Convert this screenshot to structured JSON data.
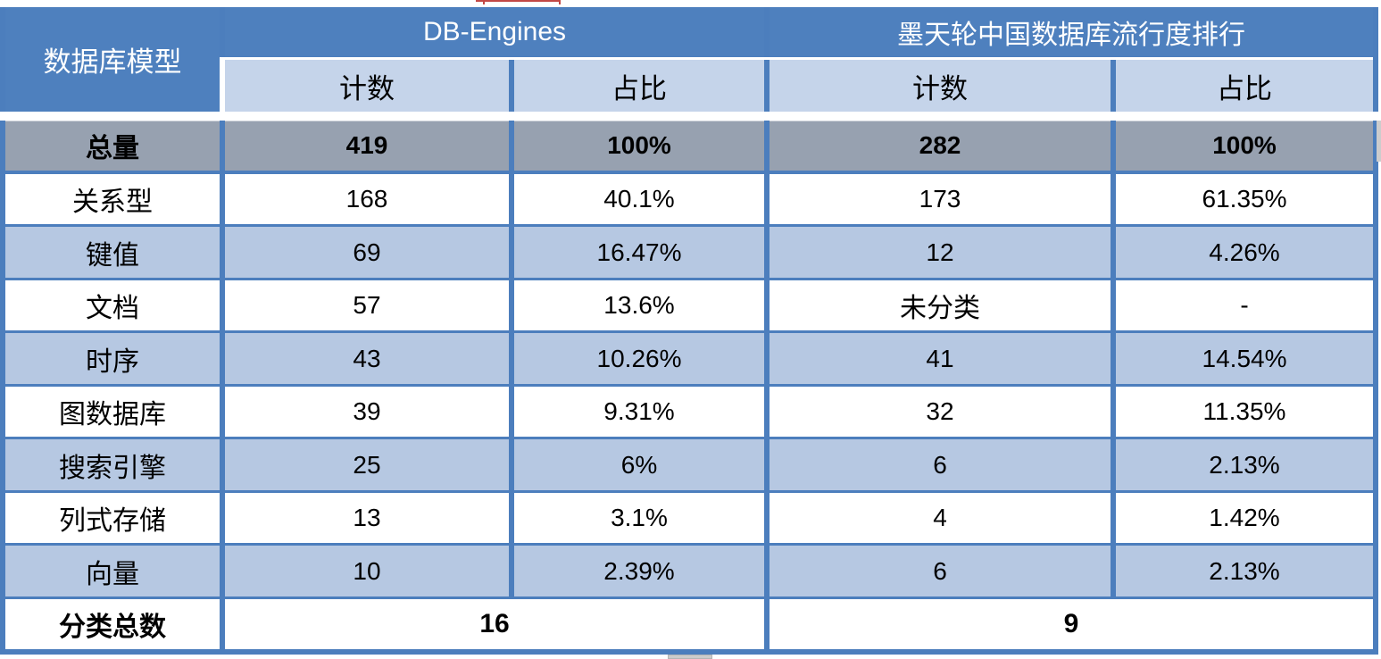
{
  "chart_data": {
    "type": "table",
    "corner_header": "数据库模型",
    "column_groups": [
      {
        "title": "DB-Engines",
        "subcolumns": [
          "计数",
          "占比"
        ]
      },
      {
        "title": "墨天轮中国数据库流行度排行",
        "subcolumns": [
          "计数",
          "占比"
        ]
      }
    ],
    "rows": [
      {
        "label": "总量",
        "values": [
          "419",
          "100%",
          "282",
          "100%"
        ]
      },
      {
        "label": "关系型",
        "values": [
          "168",
          "40.1%",
          "173",
          "61.35%"
        ]
      },
      {
        "label": "键值",
        "values": [
          "69",
          "16.47%",
          "12",
          "4.26%"
        ]
      },
      {
        "label": "文档",
        "values": [
          "57",
          "13.6%",
          "未分类",
          "-"
        ]
      },
      {
        "label": "时序",
        "values": [
          "43",
          "10.26%",
          "41",
          "14.54%"
        ]
      },
      {
        "label": "图数据库",
        "values": [
          "39",
          "9.31%",
          "32",
          "11.35%"
        ]
      },
      {
        "label": "搜索引擎",
        "values": [
          "25",
          "6%",
          "6",
          "2.13%"
        ]
      },
      {
        "label": "列式存储",
        "values": [
          "13",
          "3.1%",
          "4",
          "1.42%"
        ]
      },
      {
        "label": "向量",
        "values": [
          "10",
          "2.39%",
          "6",
          "2.13%"
        ]
      },
      {
        "label": "分类总数",
        "values": [
          "16",
          "9"
        ]
      }
    ]
  },
  "colors": {
    "header-blue": "#4E80BE",
    "border-blue": "#4C7EBD",
    "subheader-blue": "#C5D4EA",
    "row-blue": "#B6C8E2",
    "total-gray": "#97A1B0",
    "header-text": "#FFFFFF",
    "body-text": "#000000",
    "artifact-red": "#C24845",
    "scrollbar-gray": "#CCCCCC"
  }
}
